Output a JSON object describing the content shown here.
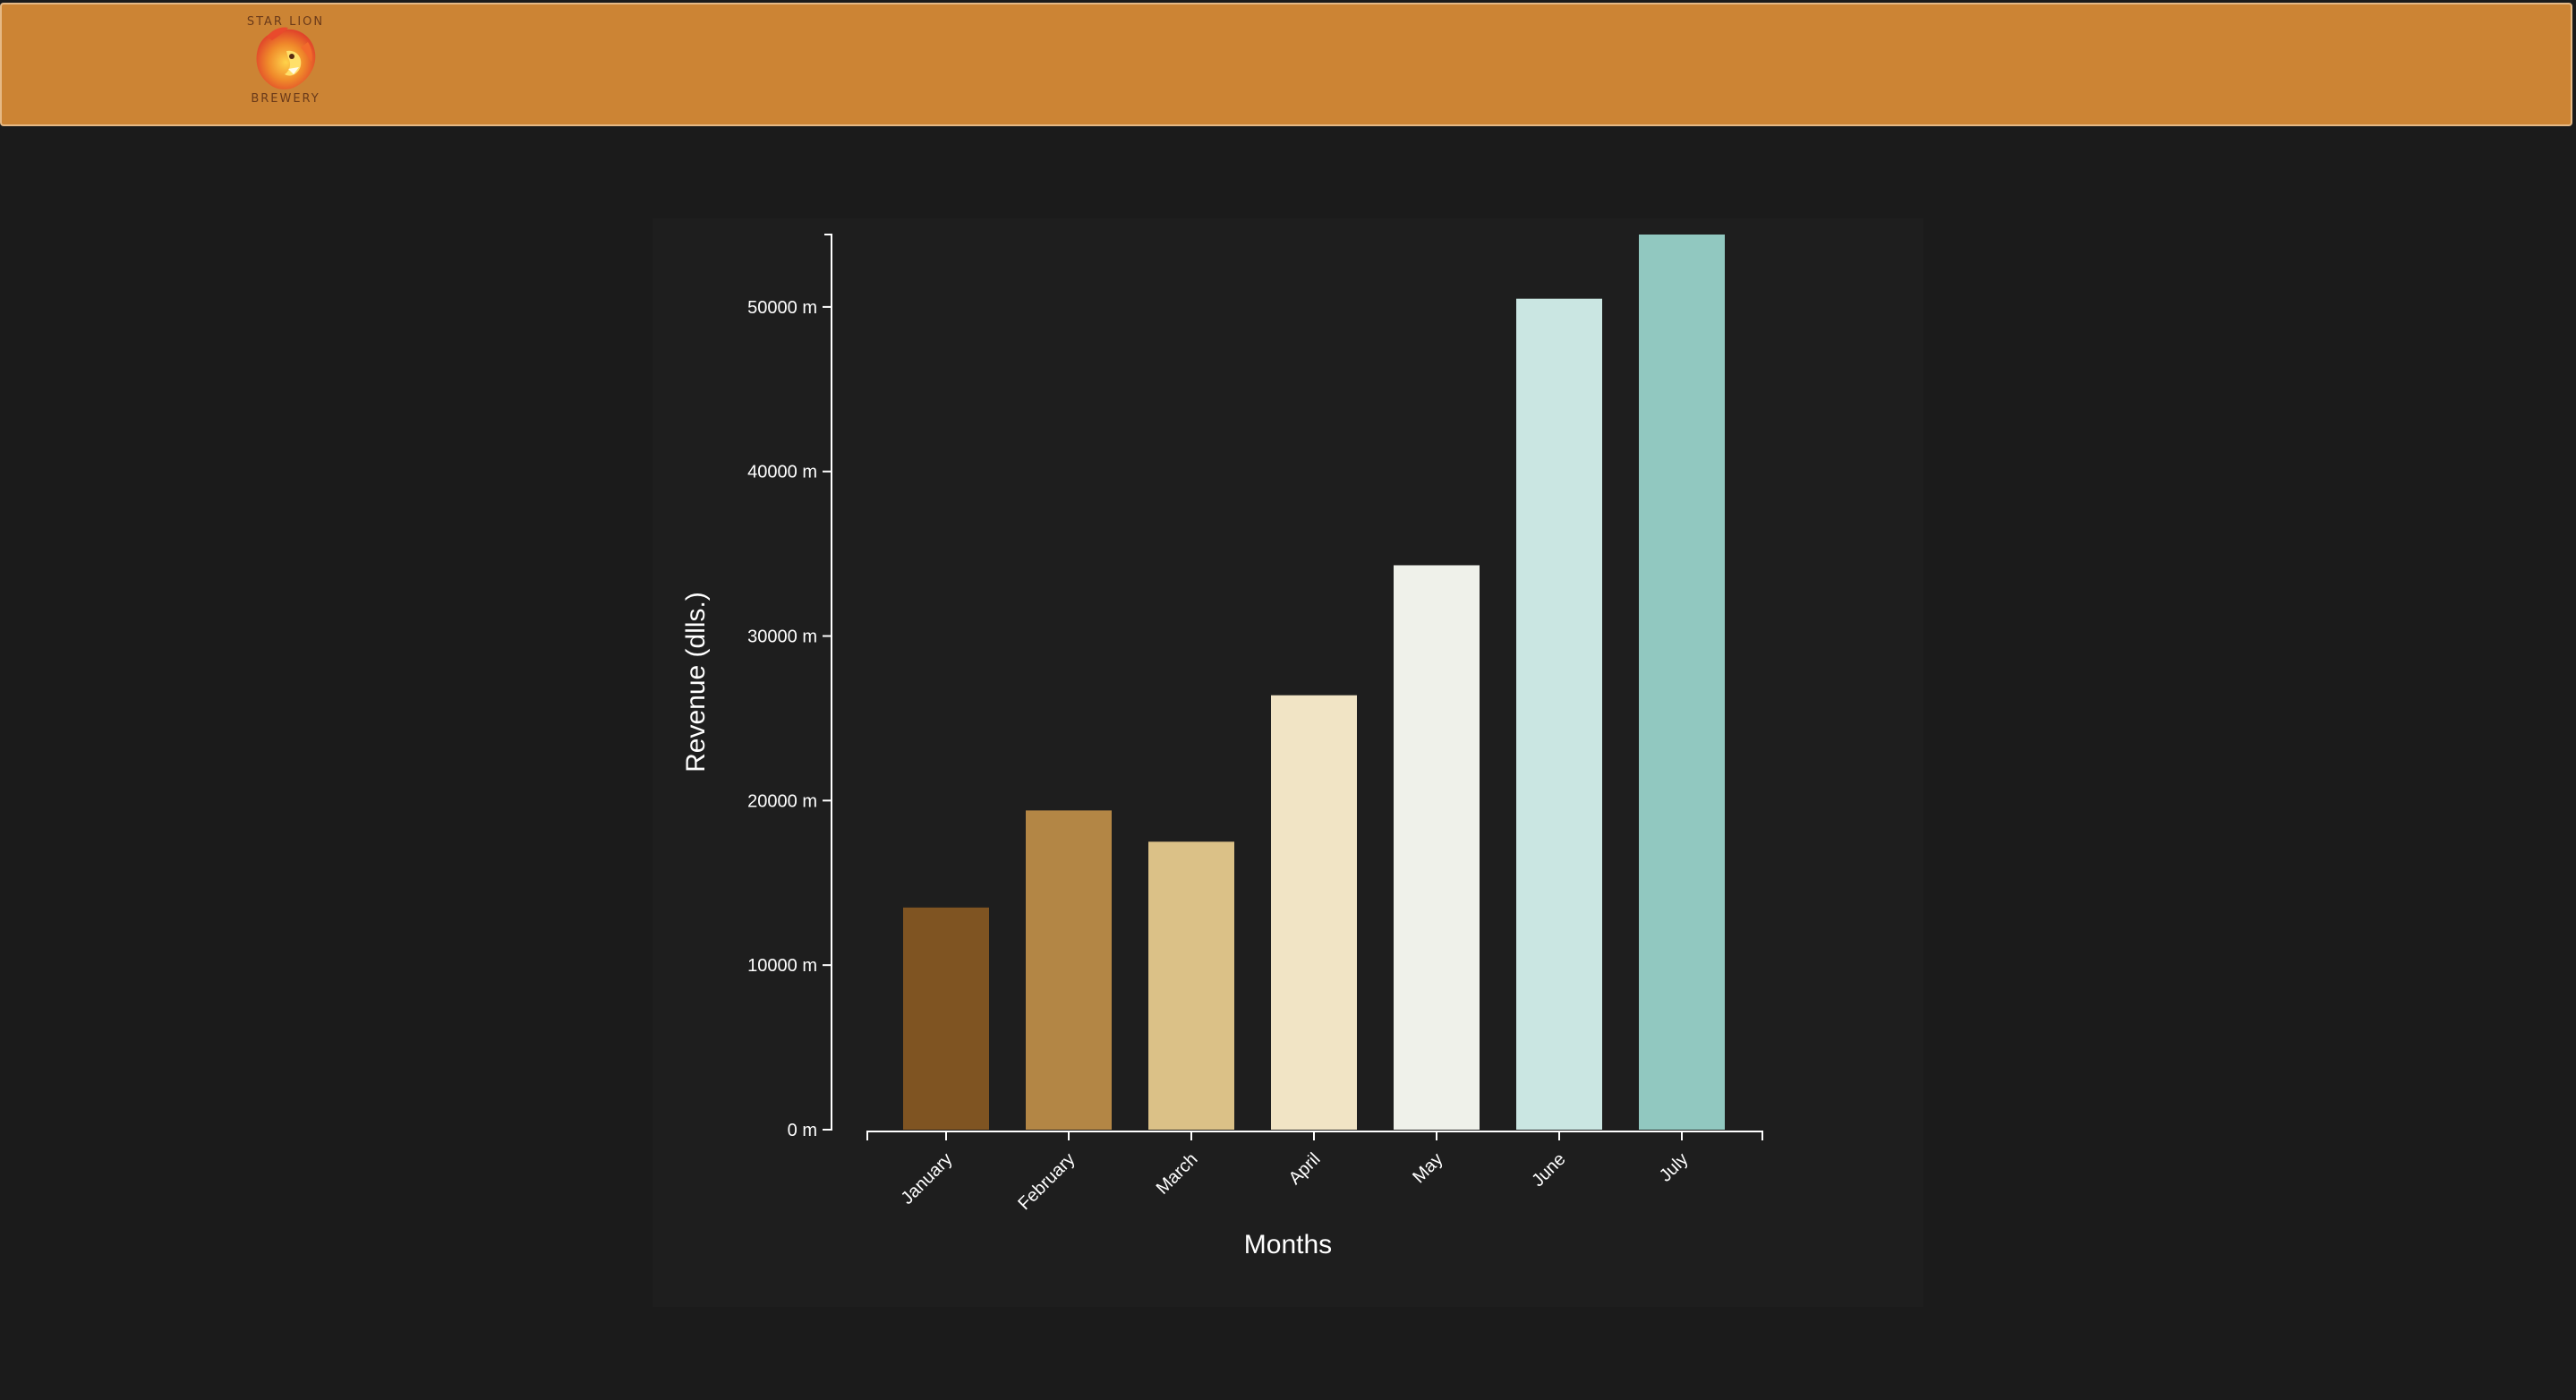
{
  "header": {
    "logo": {
      "icon": "lion-head-icon",
      "top_text": "STAR LION",
      "bottom_text": "BREWERY"
    },
    "colors": {
      "background": "#cc8434",
      "border": "#e6b985"
    }
  },
  "page": {
    "background": "#1b1b1b",
    "panel_background": "#1e1e1e"
  },
  "chart_data": {
    "type": "bar",
    "categories": [
      "January",
      "February",
      "March",
      "April",
      "May",
      "June",
      "July"
    ],
    "values": [
      13500,
      19400,
      17500,
      26400,
      34300,
      50500,
      54400
    ],
    "colors": [
      "#7f5422",
      "#b38645",
      "#dbc187",
      "#f1e4c5",
      "#eff1ea",
      "#cae6e2",
      "#91c8c0"
    ],
    "title": "",
    "xlabel": "Months",
    "ylabel": "Revenue (dlls.)",
    "ylim": [
      0,
      54400
    ],
    "yticks": [
      0,
      10000,
      20000,
      30000,
      40000,
      50000
    ],
    "ytick_labels": [
      "0 m",
      "10000 m",
      "20000 m",
      "30000 m",
      "40000 m",
      "50000 m"
    ],
    "grid": false,
    "legend": "none",
    "xtick_rotation": -45,
    "axis_color": "#ffffff"
  }
}
